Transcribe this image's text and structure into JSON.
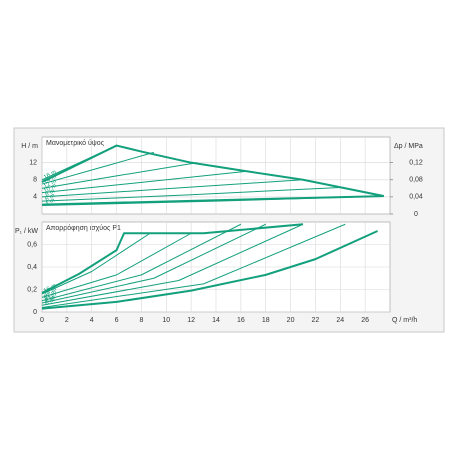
{
  "chart_data": [
    {
      "type": "line",
      "subtitle": "Μανομετρικό ύψος",
      "ylabel": "H / m",
      "y2label": "Δp / MPa",
      "xlim": [
        0,
        28
      ],
      "ylim": [
        0,
        18
      ],
      "yticks": [
        4,
        8,
        12
      ],
      "y2lim": [
        0,
        0.18
      ],
      "y2ticks": [
        0,
        {
          "value": 0.04,
          "label": "0,04"
        },
        {
          "value": 0.08,
          "label": "0,08"
        },
        {
          "value": 0.12,
          "label": "0,12"
        }
      ],
      "grid": true,
      "color": "#13a07c",
      "series": [
        {
          "x": [
            0,
            6,
            8,
            12,
            16,
            21,
            27.5
          ],
          "values": [
            7.5,
            16,
            14.6,
            12,
            10.2,
            8,
            4.2
          ],
          "line_width": 2
        },
        {
          "x": [
            0,
            27.5
          ],
          "values": [
            2.2,
            4.2
          ],
          "line_width": 2
        },
        {
          "name": "16 m",
          "x": [
            0,
            3,
            6
          ],
          "values": [
            8,
            12,
            16
          ],
          "line_width": 1
        },
        {
          "name": "14 m",
          "x": [
            0,
            4.5,
            9
          ],
          "values": [
            7,
            10.7,
            14.4
          ],
          "line_width": 1
        },
        {
          "name": "12 m",
          "x": [
            0,
            6,
            12.5
          ],
          "values": [
            6,
            8.9,
            12
          ],
          "line_width": 1
        },
        {
          "name": "10 m",
          "x": [
            0,
            8,
            16.5
          ],
          "values": [
            5,
            7.4,
            10
          ],
          "line_width": 1
        },
        {
          "name": "8 m",
          "x": [
            0,
            10,
            21
          ],
          "values": [
            4,
            5.9,
            8
          ],
          "line_width": 1
        },
        {
          "name": "6 m",
          "x": [
            0,
            12,
            24
          ],
          "values": [
            3,
            4.5,
            6.2
          ],
          "line_width": 1
        },
        {
          "name": "4 m",
          "x": [
            0,
            14,
            27.5
          ],
          "values": [
            2,
            3,
            4.2
          ],
          "line_width": 1
        }
      ]
    },
    {
      "type": "line",
      "subtitle": "Απορρόφηση ισχύος P1",
      "ylabel": "P₁ / kW",
      "xlabel": "Q / m³/h",
      "xlim": [
        0,
        28
      ],
      "xticks": [
        0,
        2,
        4,
        6,
        8,
        10,
        12,
        14,
        16,
        18,
        20,
        22,
        24,
        26
      ],
      "ylim": [
        0,
        0.8
      ],
      "yticks": [
        0,
        {
          "value": 0.2,
          "label": "0,2"
        },
        {
          "value": 0.4,
          "label": "0,4"
        },
        {
          "value": 0.6,
          "label": "0,6"
        }
      ],
      "grid": true,
      "color": "#13a07c",
      "series": [
        {
          "x": [
            0,
            3,
            6,
            6.6,
            13,
            21
          ],
          "values": [
            0.17,
            0.34,
            0.55,
            0.7,
            0.7,
            0.78
          ],
          "line_width": 2
        },
        {
          "x": [
            0,
            6,
            12,
            18,
            22,
            27
          ],
          "values": [
            0.03,
            0.09,
            0.19,
            0.33,
            0.47,
            0.72
          ],
          "line_width": 2
        },
        {
          "name": "16 m",
          "x": [
            0,
            4,
            8.7
          ],
          "values": [
            0.16,
            0.36,
            0.7
          ],
          "line_width": 1
        },
        {
          "name": "14 m",
          "x": [
            0,
            6,
            12
          ],
          "values": [
            0.13,
            0.33,
            0.7
          ],
          "line_width": 1
        },
        {
          "name": "12 m",
          "x": [
            0,
            8,
            16
          ],
          "values": [
            0.1,
            0.33,
            0.78
          ],
          "line_width": 1
        },
        {
          "name": "10 m",
          "x": [
            0,
            9,
            18
          ],
          "values": [
            0.08,
            0.3,
            0.78
          ],
          "line_width": 1
        },
        {
          "name": "8 m",
          "x": [
            0,
            11,
            21
          ],
          "values": [
            0.06,
            0.28,
            0.78
          ],
          "line_width": 1
        },
        {
          "name": "6 m",
          "x": [
            0,
            13,
            24.4
          ],
          "values": [
            0.04,
            0.25,
            0.78
          ],
          "line_width": 1
        }
      ]
    }
  ]
}
